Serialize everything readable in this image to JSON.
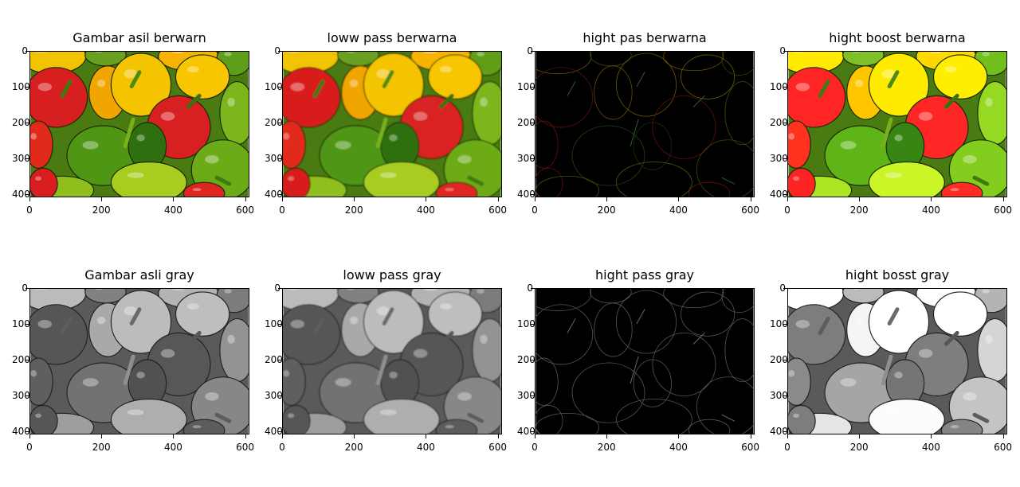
{
  "figure": {
    "panels": [
      {
        "title": "Gambar asil berwarn",
        "kind": "color"
      },
      {
        "title": "loww pass berwarna",
        "kind": "color_blur"
      },
      {
        "title": "hight pas berwarna",
        "kind": "edge_color"
      },
      {
        "title": "hight boost berwarna",
        "kind": "color_boost"
      },
      {
        "title": "Gambar asli gray",
        "kind": "gray"
      },
      {
        "title": "loww pass gray",
        "kind": "gray_blur"
      },
      {
        "title": "hight pass gray",
        "kind": "edge_gray"
      },
      {
        "title": "hight bosst gray",
        "kind": "gray_boost"
      }
    ],
    "x_ticks": [
      "0",
      "200",
      "400",
      "600"
    ],
    "y_ticks": [
      "0",
      "100",
      "200",
      "300",
      "400"
    ],
    "x_range": [
      0,
      612
    ],
    "y_range": [
      408,
      0
    ]
  }
}
